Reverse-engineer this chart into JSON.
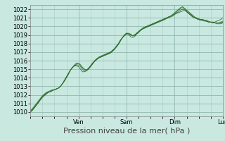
{
  "bg_color": "#c8e8e0",
  "plot_bg_color": "#c8e8e0",
  "grid_color_major": "#90b8b0",
  "grid_color_minor": "#a8ccc4",
  "line_color": "#2d6b2d",
  "ylim": [
    1009.5,
    1022.5
  ],
  "yticks": [
    1010,
    1011,
    1012,
    1013,
    1014,
    1015,
    1016,
    1017,
    1018,
    1019,
    1020,
    1021,
    1022
  ],
  "xlabel": "Pression niveau de la mer( hPa )",
  "xlabel_fontsize": 8,
  "tick_fontsize": 6,
  "day_labels": [
    "Ven",
    "Sam",
    "Dim",
    "Lun"
  ],
  "day_positions": [
    24,
    48,
    72,
    96
  ],
  "xlim": [
    0,
    96
  ],
  "lines": [
    {
      "y": [
        1010.2,
        1010.4,
        1010.7,
        1011.0,
        1011.3,
        1011.6,
        1011.9,
        1012.1,
        1012.3,
        1012.4,
        1012.5,
        1012.6,
        1012.6,
        1012.7,
        1012.8,
        1013.0,
        1013.3,
        1013.7,
        1014.1,
        1014.5,
        1014.9,
        1015.2,
        1015.4,
        1015.4,
        1015.3,
        1015.0,
        1014.7,
        1014.7,
        1014.8,
        1015.0,
        1015.3,
        1015.6,
        1015.9,
        1016.1,
        1016.3,
        1016.4,
        1016.5,
        1016.6,
        1016.7,
        1016.8,
        1016.9,
        1017.1,
        1017.3,
        1017.6,
        1017.9,
        1018.3,
        1018.7,
        1019.0,
        1019.2,
        1019.1,
        1018.8,
        1018.7,
        1018.8,
        1019.1,
        1019.3,
        1019.5,
        1019.7,
        1019.8,
        1019.9,
        1020.0,
        1020.1,
        1020.2,
        1020.3,
        1020.4,
        1020.5,
        1020.6,
        1020.7,
        1020.8,
        1021.0,
        1021.1,
        1021.2,
        1021.4,
        1021.6,
        1021.8,
        1022.0,
        1022.2,
        1022.3,
        1022.1,
        1021.9,
        1021.7,
        1021.5,
        1021.3,
        1021.1,
        1021.0,
        1020.9,
        1020.8,
        1020.8,
        1020.7,
        1020.6,
        1020.5,
        1020.5,
        1020.5,
        1020.5,
        1020.6,
        1020.7,
        1020.8,
        1021.0
      ]
    },
    {
      "y": [
        1010.0,
        1010.2,
        1010.5,
        1010.8,
        1011.1,
        1011.5,
        1011.8,
        1012.0,
        1012.2,
        1012.3,
        1012.4,
        1012.5,
        1012.6,
        1012.7,
        1012.8,
        1013.0,
        1013.3,
        1013.7,
        1014.1,
        1014.5,
        1014.9,
        1015.2,
        1015.5,
        1015.7,
        1015.7,
        1015.5,
        1015.2,
        1015.0,
        1014.9,
        1015.0,
        1015.3,
        1015.6,
        1015.9,
        1016.1,
        1016.3,
        1016.4,
        1016.5,
        1016.6,
        1016.7,
        1016.8,
        1016.9,
        1017.1,
        1017.4,
        1017.7,
        1018.0,
        1018.4,
        1018.7,
        1019.0,
        1019.2,
        1019.2,
        1019.1,
        1018.9,
        1018.9,
        1019.1,
        1019.3,
        1019.6,
        1019.7,
        1019.8,
        1019.9,
        1020.0,
        1020.1,
        1020.2,
        1020.3,
        1020.4,
        1020.5,
        1020.6,
        1020.7,
        1020.8,
        1020.9,
        1021.0,
        1021.1,
        1021.2,
        1021.4,
        1021.5,
        1021.6,
        1021.7,
        1021.8,
        1021.9,
        1021.7,
        1021.5,
        1021.3,
        1021.1,
        1021.0,
        1020.9,
        1020.8,
        1020.8,
        1020.8,
        1020.7,
        1020.7,
        1020.6,
        1020.5,
        1020.5,
        1020.4,
        1020.4,
        1020.4,
        1020.4,
        1020.5
      ]
    },
    {
      "y": [
        1010.1,
        1010.3,
        1010.6,
        1010.9,
        1011.2,
        1011.5,
        1011.8,
        1012.0,
        1012.2,
        1012.3,
        1012.4,
        1012.5,
        1012.6,
        1012.7,
        1012.8,
        1013.0,
        1013.3,
        1013.7,
        1014.1,
        1014.5,
        1014.9,
        1015.2,
        1015.4,
        1015.5,
        1015.5,
        1015.3,
        1015.0,
        1014.8,
        1014.9,
        1015.1,
        1015.4,
        1015.7,
        1015.9,
        1016.2,
        1016.3,
        1016.5,
        1016.6,
        1016.7,
        1016.8,
        1016.9,
        1017.0,
        1017.2,
        1017.4,
        1017.7,
        1018.0,
        1018.4,
        1018.7,
        1018.9,
        1019.1,
        1019.1,
        1019.0,
        1018.9,
        1019.0,
        1019.2,
        1019.4,
        1019.6,
        1019.8,
        1019.9,
        1020.0,
        1020.1,
        1020.2,
        1020.3,
        1020.4,
        1020.5,
        1020.6,
        1020.7,
        1020.8,
        1020.9,
        1021.0,
        1021.1,
        1021.2,
        1021.3,
        1021.5,
        1021.7,
        1021.9,
        1022.1,
        1022.2,
        1022.0,
        1021.8,
        1021.6,
        1021.4,
        1021.2,
        1021.0,
        1020.9,
        1020.8,
        1020.7,
        1020.7,
        1020.6,
        1020.6,
        1020.5,
        1020.5,
        1020.5,
        1020.4,
        1020.4,
        1020.4,
        1020.5,
        1020.6
      ]
    },
    {
      "y": [
        1010.0,
        1010.2,
        1010.5,
        1010.8,
        1011.1,
        1011.4,
        1011.7,
        1011.9,
        1012.1,
        1012.3,
        1012.4,
        1012.5,
        1012.6,
        1012.7,
        1012.8,
        1013.0,
        1013.3,
        1013.6,
        1014.0,
        1014.4,
        1014.9,
        1015.2,
        1015.4,
        1015.6,
        1015.7,
        1015.5,
        1015.2,
        1015.0,
        1014.9,
        1015.1,
        1015.4,
        1015.7,
        1016.0,
        1016.2,
        1016.4,
        1016.5,
        1016.6,
        1016.7,
        1016.8,
        1016.9,
        1017.0,
        1017.2,
        1017.4,
        1017.7,
        1018.0,
        1018.4,
        1018.7,
        1019.0,
        1019.2,
        1019.1,
        1019.0,
        1018.9,
        1019.0,
        1019.2,
        1019.4,
        1019.6,
        1019.7,
        1019.9,
        1020.0,
        1020.1,
        1020.2,
        1020.3,
        1020.4,
        1020.5,
        1020.6,
        1020.7,
        1020.8,
        1020.9,
        1021.0,
        1021.1,
        1021.2,
        1021.3,
        1021.4,
        1021.6,
        1021.7,
        1021.9,
        1022.0,
        1021.9,
        1021.7,
        1021.5,
        1021.3,
        1021.1,
        1021.0,
        1020.9,
        1020.8,
        1020.8,
        1020.7,
        1020.7,
        1020.6,
        1020.5,
        1020.5,
        1020.4,
        1020.4,
        1020.3,
        1020.3,
        1020.3,
        1020.4
      ]
    }
  ]
}
